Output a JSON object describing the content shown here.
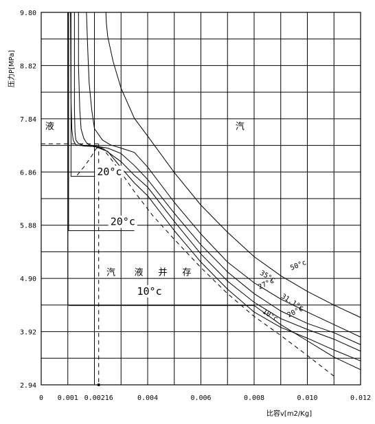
{
  "chart_data": {
    "type": "line",
    "title": "",
    "xlabel": "比容v[m2/Kg]",
    "ylabel": "压力P[MPa]",
    "xlim": [
      0,
      0.012
    ],
    "ylim": [
      2.94,
      9.8
    ],
    "x_ticks": [
      {
        "value": 0,
        "label": "0"
      },
      {
        "value": 0.001,
        "label": "0.001"
      },
      {
        "value": 0.00216,
        "label": "0.00216"
      },
      {
        "value": 0.004,
        "label": "0.004"
      },
      {
        "value": 0.006,
        "label": "0.006"
      },
      {
        "value": 0.008,
        "label": "0.008"
      },
      {
        "value": 0.01,
        "label": "0.010"
      },
      {
        "value": 0.012,
        "label": "0.012"
      }
    ],
    "y_ticks": [
      {
        "value": 2.94,
        "label": "2.94"
      },
      {
        "value": 3.92,
        "label": "3.92"
      },
      {
        "value": 4.9,
        "label": "4.90"
      },
      {
        "value": 5.88,
        "label": "5.88"
      },
      {
        "value": 6.86,
        "label": "6.86"
      },
      {
        "value": 7.84,
        "label": "7.84"
      },
      {
        "value": 8.82,
        "label": "8.82"
      },
      {
        "value": 9.8,
        "label": "9.80"
      }
    ],
    "grid": true,
    "regions": [
      {
        "label": "液",
        "x": 0.00015,
        "y": 7.65
      },
      {
        "label": "汽",
        "x": 0.0073,
        "y": 7.65
      },
      {
        "label": "汽",
        "x": 0.00245,
        "y": 4.96
      },
      {
        "label": "液",
        "x": 0.0035,
        "y": 4.96
      },
      {
        "label": "并",
        "x": 0.0044,
        "y": 4.96
      },
      {
        "label": "存",
        "x": 0.0053,
        "y": 4.96
      }
    ],
    "series": [
      {
        "name": "50°c",
        "style": "solid",
        "x": [
          0.00243,
          0.00245,
          0.0025,
          0.0027,
          0.003,
          0.0035,
          0.004,
          0.005,
          0.006,
          0.007,
          0.008,
          0.009,
          0.01,
          0.011,
          0.012
        ],
        "y": [
          9.8,
          9.6,
          9.35,
          8.9,
          8.4,
          7.85,
          7.52,
          6.85,
          6.25,
          5.75,
          5.3,
          4.95,
          4.66,
          4.41,
          4.18
        ]
      },
      {
        "name": "35°c",
        "style": "solid",
        "x": [
          0.0017,
          0.00175,
          0.0018,
          0.0019,
          0.002,
          0.0023,
          0.0026,
          0.003,
          0.0035,
          0.004,
          0.005,
          0.006,
          0.007,
          0.008,
          0.009,
          0.01,
          0.011,
          0.012
        ],
        "y": [
          9.8,
          9.1,
          8.5,
          8.0,
          7.66,
          7.45,
          7.36,
          7.3,
          7.22,
          6.95,
          6.3,
          5.72,
          5.2,
          4.82,
          4.52,
          4.28,
          4.05,
          3.82
        ]
      },
      {
        "name": "31.1°c",
        "style": "solid",
        "x": [
          0.0014,
          0.0014,
          0.00145,
          0.0015,
          0.0016,
          0.0017,
          0.0018,
          0.002,
          0.0025,
          0.003,
          0.0035,
          0.004,
          0.005,
          0.006,
          0.007,
          0.008,
          0.009,
          0.01,
          0.011,
          0.012
        ],
        "y": [
          9.8,
          8.8,
          8.0,
          7.65,
          7.48,
          7.4,
          7.36,
          7.34,
          7.3,
          7.2,
          6.98,
          6.72,
          6.1,
          5.52,
          5.02,
          4.62,
          4.3,
          4.07,
          3.9,
          3.68
        ]
      },
      {
        "name": "27°c",
        "style": "solid",
        "x": [
          0.00125,
          0.00125,
          0.00127,
          0.0013,
          0.0014,
          0.0016,
          0.002,
          0.0023,
          0.003,
          0.0035,
          0.004,
          0.005,
          0.006,
          0.007,
          0.008,
          0.009,
          0.01,
          0.011,
          0.012
        ],
        "y": [
          9.8,
          8.0,
          7.6,
          7.45,
          7.38,
          7.35,
          7.33,
          7.3,
          7.05,
          6.8,
          6.58,
          5.95,
          5.35,
          4.85,
          4.46,
          4.16,
          3.96,
          3.78,
          3.56
        ]
      },
      {
        "name": "20°c",
        "style": "solid",
        "x": [
          0.0011,
          0.00112,
          0.00115,
          0.0012,
          0.0013,
          0.0016,
          0.002,
          0.0025,
          0.003,
          0.0035,
          0.004,
          0.005,
          0.006,
          0.007,
          0.008,
          0.009,
          0.01,
          0.011,
          0.012
        ],
        "y": [
          9.8,
          8.2,
          7.65,
          7.45,
          7.36,
          7.34,
          7.33,
          7.24,
          6.94,
          6.66,
          6.42,
          5.78,
          5.2,
          4.7,
          4.28,
          4.0,
          3.8,
          3.58,
          3.38
        ]
      },
      {
        "name": "10°c",
        "style": "solid",
        "x": [
          0.001,
          0.001,
          0.00105,
          0.008,
          0.009,
          0.01,
          0.011,
          0.012
        ],
        "y": [
          9.8,
          4.42,
          4.4,
          4.4,
          4.05,
          3.75,
          3.45,
          3.22
        ]
      },
      {
        "name": "10°c",
        "style": "solid",
        "x": [
          0.00103,
          0.00103,
          0.0035
        ],
        "y": [
          9.8,
          5.78,
          5.78
        ]
      },
      {
        "name": "20°c",
        "style": "solid",
        "x": [
          0.00112,
          0.00112,
          0.0024
        ],
        "y": [
          9.8,
          6.78,
          6.78
        ]
      },
      {
        "name": "",
        "style": "dashed",
        "x": [
          0.00135,
          0.0016,
          0.00185,
          0.00205,
          0.00216,
          0.0024,
          0.0027,
          0.003,
          0.0035,
          0.0042,
          0.005,
          0.006,
          0.007,
          0.008,
          0.009,
          0.01,
          0.011
        ],
        "y": [
          6.8,
          6.95,
          7.12,
          7.28,
          7.33,
          7.24,
          7.05,
          6.85,
          6.5,
          6.05,
          5.62,
          5.1,
          4.62,
          4.2,
          3.85,
          3.48,
          3.1
        ]
      }
    ],
    "critical_point": {
      "x": 0.00216,
      "y": 7.38
    },
    "annotations": [
      {
        "text": "50°c",
        "x": 0.0094,
        "y": 5.05,
        "rotate": -22
      },
      {
        "text": "35°c",
        "x": 0.0082,
        "y": 4.98,
        "rotate": 30
      },
      {
        "text": "31.1°c",
        "x": 0.009,
        "y": 4.55,
        "rotate": 32
      },
      {
        "text": "27°c",
        "x": 0.0082,
        "y": 4.7,
        "rotate": -25
      },
      {
        "text": "20°c",
        "x": 0.0093,
        "y": 4.18,
        "rotate": -27
      },
      {
        "text": "10°c",
        "x": 0.0083,
        "y": 4.27,
        "rotate": 32
      },
      {
        "text": "20°c",
        "x": 0.0021,
        "y": 6.8,
        "rotate": 0
      },
      {
        "text": "20°c",
        "x": 0.0026,
        "y": 5.88,
        "rotate": 0
      },
      {
        "text": "10°c",
        "x": 0.0036,
        "y": 4.6,
        "rotate": 0
      }
    ]
  }
}
